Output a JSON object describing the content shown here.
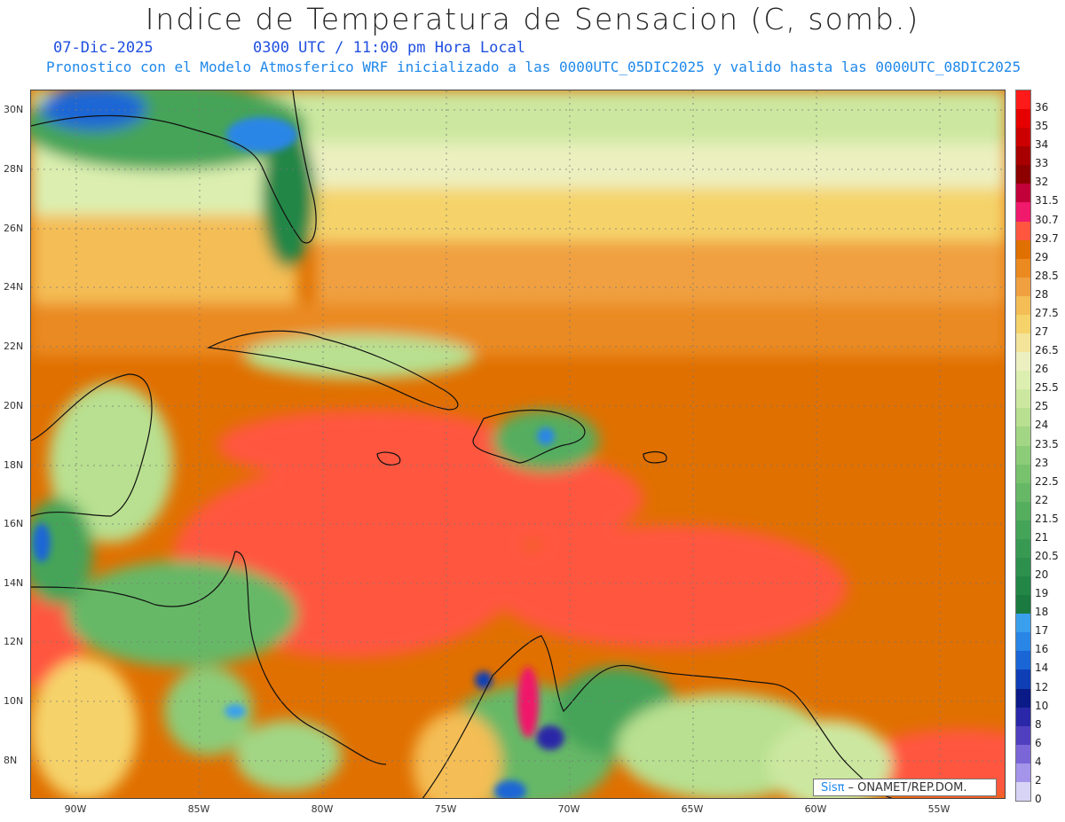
{
  "header": {
    "title": "Indice de Temperatura de Sensacion (C, somb.)",
    "date": "07-Dic-2025",
    "time": "0300 UTC / 11:00 pm Hora Local",
    "subtitle": "Pronostico con el Modelo Atmosferico WRF inicializado a las 0000UTC_05DIC2025 y valido hasta las 0000UTC_08DIC2025"
  },
  "map": {
    "lat_labels": [
      "30N",
      "28N",
      "26N",
      "24N",
      "22N",
      "20N",
      "18N",
      "16N",
      "14N",
      "12N",
      "10N",
      "8N"
    ],
    "lon_labels": [
      "90W",
      "85W",
      "80W",
      "75W",
      "70W",
      "65W",
      "60W",
      "55W"
    ]
  },
  "colorbar": {
    "levels": [
      "36",
      "35",
      "34",
      "33",
      "32",
      "31.5",
      "30.7",
      "29.7",
      "29",
      "28.5",
      "28",
      "27.5",
      "27",
      "26.5",
      "26",
      "25.5",
      "25",
      "24",
      "23.5",
      "23",
      "22.5",
      "22",
      "21.5",
      "21",
      "20.5",
      "20",
      "19",
      "18",
      "17",
      "16",
      "14",
      "12",
      "10",
      "8",
      "6",
      "4",
      "2",
      "0"
    ],
    "colors": [
      "#ff1a1a",
      "#e60000",
      "#cc0000",
      "#a80000",
      "#8c0000",
      "#c2003a",
      "#f0196b",
      "#ff5640",
      "#e07000",
      "#ea8a20",
      "#f0a040",
      "#f4bd55",
      "#f5d36a",
      "#f3e49a",
      "#ecf0c0",
      "#dcefb0",
      "#cce8a0",
      "#b8e090",
      "#a2d684",
      "#8ccc78",
      "#78c26e",
      "#66b866",
      "#55ae5e",
      "#44a458",
      "#389a52",
      "#2d904c",
      "#228646",
      "#1a7a40",
      "#3aa0ee",
      "#2a86e6",
      "#1a66d6",
      "#0f3fb6",
      "#0a1a86",
      "#2a28a8",
      "#5040c0",
      "#7a66d6",
      "#a494ea",
      "#d8d4f6"
    ]
  },
  "credit": {
    "logo": "Sisπ",
    "text": "– ONAMET/REP.DOM."
  }
}
